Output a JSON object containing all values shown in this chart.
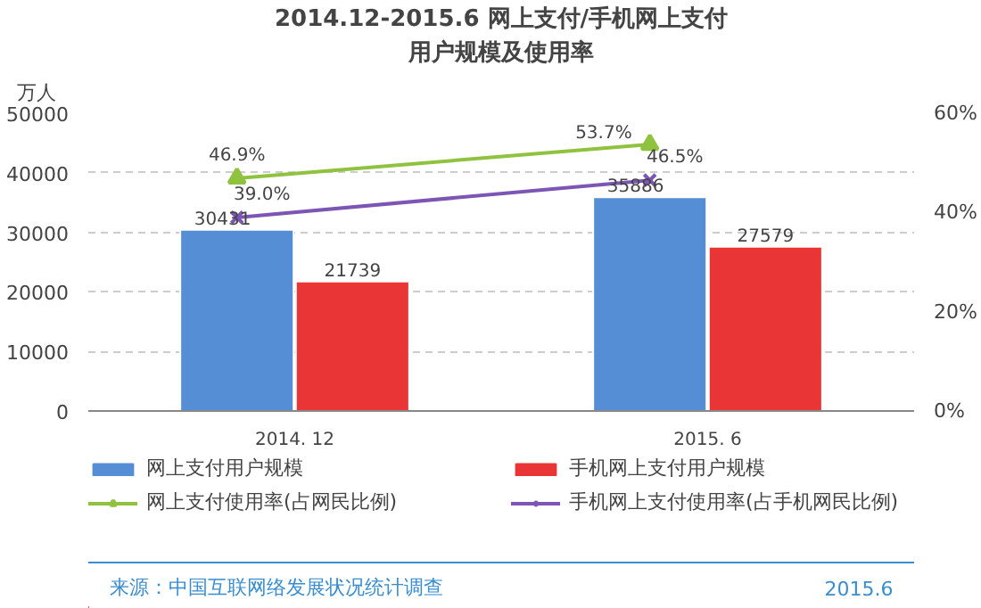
{
  "chart_data": {
    "type": "bar",
    "title": "2014.12-2015.6 网上支付/手机网上支付",
    "subtitle": "用户规模及使用率",
    "ylabel": "万人",
    "categories": [
      "2014. 12",
      "2015. 6"
    ],
    "series": [
      {
        "name": "网上支付用户规模",
        "color": "#558ed5",
        "values": [
          30431,
          35886
        ],
        "value_labels": [
          "30431",
          "35886"
        ]
      },
      {
        "name": "手机网上支付用户规模",
        "color": "#e93536",
        "values": [
          21739,
          27579
        ],
        "value_labels": [
          "21739",
          "27579"
        ]
      },
      {
        "name": "网上支付使用率(占网民比例)",
        "type": "line",
        "axis": "y2",
        "marker": "triangle",
        "color": "#8fc33f",
        "values": [
          46.9,
          53.7
        ],
        "value_labels": [
          "46.9%",
          "53.7%"
        ]
      },
      {
        "name": "手机网上支付使用率(占手机网民比例)",
        "type": "line",
        "axis": "y2",
        "marker": "cross",
        "color": "#7d55b5",
        "values": [
          39.0,
          46.5
        ],
        "value_labels": [
          "39.0%",
          "46.5%"
        ]
      }
    ],
    "ylim": [
      0,
      50000
    ],
    "yticks": [
      0,
      10000,
      20000,
      30000,
      40000,
      50000
    ],
    "y2lim": [
      0,
      60
    ],
    "y2ticks": [
      {
        "value": 0,
        "label": "0%"
      },
      {
        "value": 20,
        "label": "20%"
      },
      {
        "value": 40,
        "label": "40%"
      },
      {
        "value": 60,
        "label": "60%"
      }
    ],
    "grid": "y",
    "legend": "bottom",
    "annotations": [
      "来源：中国互联网络发展状况统计调查",
      "2015.6"
    ]
  }
}
